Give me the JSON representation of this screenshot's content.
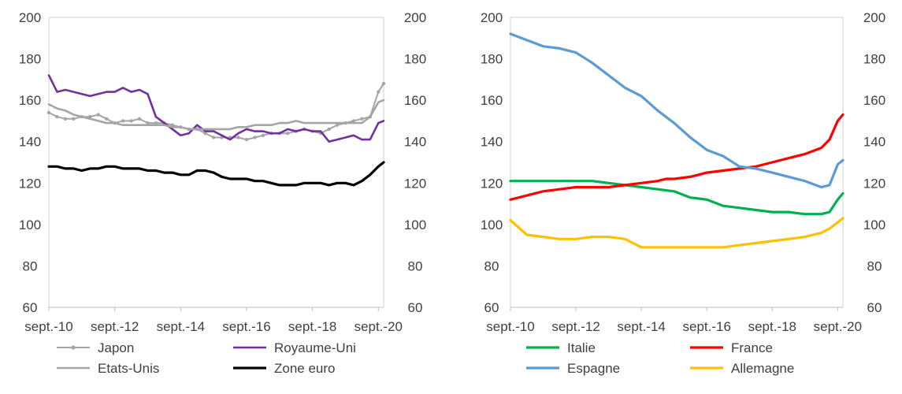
{
  "chart_data": [
    {
      "type": "line",
      "title": "",
      "xlabel": "",
      "ylabel": "",
      "ylim": [
        60,
        200
      ],
      "yticks": [
        60,
        80,
        100,
        120,
        140,
        160,
        180,
        200
      ],
      "y2ticks": [
        60,
        80,
        100,
        120,
        140,
        160,
        180,
        200
      ],
      "xlim": [
        2010.67,
        2020.83
      ],
      "xticks": [
        {
          "label": "sept.-10",
          "x": 2010.67
        },
        {
          "label": "sept.-12",
          "x": 2012.67
        },
        {
          "label": "sept.-14",
          "x": 2014.67
        },
        {
          "label": "sept.-16",
          "x": 2016.67
        },
        {
          "label": "sept.-18",
          "x": 2018.67
        },
        {
          "label": "sept.-20",
          "x": 2020.67
        }
      ],
      "legend": "bottom",
      "series": [
        {
          "name": "Japon",
          "color": "#a5a5a5",
          "markers": true,
          "width": 2,
          "x": [
            2010.67,
            2010.92,
            2011.17,
            2011.42,
            2011.67,
            2011.92,
            2012.17,
            2012.42,
            2012.67,
            2012.92,
            2013.17,
            2013.42,
            2013.67,
            2013.92,
            2014.17,
            2014.42,
            2014.67,
            2014.92,
            2015.17,
            2015.42,
            2015.67,
            2015.92,
            2016.17,
            2016.42,
            2016.67,
            2016.92,
            2017.17,
            2017.42,
            2017.67,
            2017.92,
            2018.17,
            2018.42,
            2018.67,
            2018.92,
            2019.17,
            2019.42,
            2019.67,
            2019.92,
            2020.17,
            2020.42,
            2020.67,
            2020.83
          ],
          "y": [
            154,
            152,
            151,
            151,
            152,
            152,
            153,
            151,
            149,
            150,
            150,
            151,
            149,
            149,
            149,
            148,
            147,
            146,
            146,
            144,
            142,
            142,
            142,
            142,
            141,
            142,
            143,
            144,
            144,
            144,
            145,
            146,
            145,
            144,
            146,
            148,
            149,
            150,
            151,
            152,
            164,
            168
          ]
        },
        {
          "name": "Royaume-Uni",
          "color": "#7030a0",
          "markers": false,
          "width": 2.6,
          "x": [
            2010.67,
            2010.92,
            2011.17,
            2011.42,
            2011.67,
            2011.92,
            2012.17,
            2012.42,
            2012.67,
            2012.92,
            2013.17,
            2013.42,
            2013.67,
            2013.92,
            2014.17,
            2014.42,
            2014.67,
            2014.92,
            2015.17,
            2015.42,
            2015.67,
            2015.92,
            2016.17,
            2016.42,
            2016.67,
            2016.92,
            2017.17,
            2017.42,
            2017.67,
            2017.92,
            2018.17,
            2018.42,
            2018.67,
            2018.92,
            2019.17,
            2019.42,
            2019.67,
            2019.92,
            2020.17,
            2020.42,
            2020.67,
            2020.83
          ],
          "y": [
            172,
            164,
            165,
            164,
            163,
            162,
            163,
            164,
            164,
            166,
            164,
            165,
            163,
            152,
            149,
            146,
            143,
            144,
            148,
            145,
            145,
            143,
            141,
            144,
            146,
            145,
            145,
            144,
            144,
            146,
            145,
            146,
            145,
            145,
            140,
            141,
            142,
            143,
            141,
            141,
            149,
            150
          ]
        },
        {
          "name": "Etats-Unis",
          "color": "#a5a5a5",
          "markers": false,
          "width": 2.6,
          "x": [
            2010.67,
            2010.92,
            2011.17,
            2011.42,
            2011.67,
            2011.92,
            2012.17,
            2012.42,
            2012.67,
            2012.92,
            2013.17,
            2013.42,
            2013.67,
            2013.92,
            2014.17,
            2014.42,
            2014.67,
            2014.92,
            2015.17,
            2015.42,
            2015.67,
            2015.92,
            2016.17,
            2016.42,
            2016.67,
            2016.92,
            2017.17,
            2017.42,
            2017.67,
            2017.92,
            2018.17,
            2018.42,
            2018.67,
            2018.92,
            2019.17,
            2019.42,
            2019.67,
            2019.92,
            2020.17,
            2020.42,
            2020.67,
            2020.83
          ],
          "y": [
            158,
            156,
            155,
            153,
            152,
            151,
            150,
            149,
            149,
            148,
            148,
            148,
            148,
            148,
            148,
            147,
            147,
            146,
            146,
            146,
            146,
            146,
            146,
            147,
            147,
            148,
            148,
            148,
            149,
            149,
            150,
            149,
            149,
            149,
            149,
            149,
            149,
            149,
            149,
            152,
            159,
            160
          ]
        },
        {
          "name": "Zone euro",
          "color": "#000000",
          "markers": false,
          "width": 3.2,
          "x": [
            2010.67,
            2010.92,
            2011.17,
            2011.42,
            2011.67,
            2011.92,
            2012.17,
            2012.42,
            2012.67,
            2012.92,
            2013.17,
            2013.42,
            2013.67,
            2013.92,
            2014.17,
            2014.42,
            2014.67,
            2014.92,
            2015.17,
            2015.42,
            2015.67,
            2015.92,
            2016.17,
            2016.42,
            2016.67,
            2016.92,
            2017.17,
            2017.42,
            2017.67,
            2017.92,
            2018.17,
            2018.42,
            2018.67,
            2018.92,
            2019.17,
            2019.42,
            2019.67,
            2019.92,
            2020.17,
            2020.42,
            2020.67,
            2020.83
          ],
          "y": [
            128,
            128,
            127,
            127,
            126,
            127,
            127,
            128,
            128,
            127,
            127,
            127,
            126,
            126,
            125,
            125,
            124,
            124,
            126,
            126,
            125,
            123,
            122,
            122,
            122,
            121,
            121,
            120,
            119,
            119,
            119,
            120,
            120,
            120,
            119,
            120,
            120,
            119,
            121,
            124,
            128,
            130
          ]
        }
      ]
    },
    {
      "type": "line",
      "title": "",
      "xlabel": "",
      "ylabel": "",
      "ylim": [
        60,
        200
      ],
      "yticks": [
        60,
        80,
        100,
        120,
        140,
        160,
        180,
        200
      ],
      "y2ticks": [
        60,
        80,
        100,
        120,
        140,
        160,
        180,
        200
      ],
      "xlim": [
        2010.67,
        2020.83
      ],
      "xticks": [
        {
          "label": "sept.-10",
          "x": 2010.67
        },
        {
          "label": "sept.-12",
          "x": 2012.67
        },
        {
          "label": "sept.-14",
          "x": 2014.67
        },
        {
          "label": "sept.-16",
          "x": 2016.67
        },
        {
          "label": "sept.-18",
          "x": 2018.67
        },
        {
          "label": "sept.-20",
          "x": 2020.67
        }
      ],
      "legend": "bottom",
      "series": [
        {
          "name": "Italie",
          "color": "#00b050",
          "markers": false,
          "width": 3.2,
          "x": [
            2010.67,
            2011.17,
            2011.67,
            2012.17,
            2012.67,
            2013.17,
            2013.67,
            2014.17,
            2014.67,
            2015.17,
            2015.67,
            2016.17,
            2016.67,
            2017.17,
            2017.67,
            2018.17,
            2018.67,
            2019.17,
            2019.67,
            2020.17,
            2020.42,
            2020.67,
            2020.83
          ],
          "y": [
            121,
            121,
            121,
            121,
            121,
            121,
            120,
            119,
            118,
            117,
            116,
            113,
            112,
            109,
            108,
            107,
            106,
            106,
            105,
            105,
            106,
            112,
            115
          ]
        },
        {
          "name": "France",
          "color": "#ff0000",
          "markers": false,
          "width": 3.2,
          "x": [
            2010.67,
            2011.17,
            2011.67,
            2012.17,
            2012.67,
            2013.17,
            2013.67,
            2014.17,
            2014.67,
            2015.17,
            2015.42,
            2015.67,
            2016.17,
            2016.67,
            2017.17,
            2017.67,
            2018.17,
            2018.67,
            2019.17,
            2019.67,
            2020.17,
            2020.42,
            2020.67,
            2020.83
          ],
          "y": [
            112,
            114,
            116,
            117,
            118,
            118,
            118,
            119,
            120,
            121,
            122,
            122,
            123,
            125,
            126,
            127,
            128,
            130,
            132,
            134,
            137,
            141,
            150,
            153
          ]
        },
        {
          "name": "Espagne",
          "color": "#5b9bd5",
          "markers": false,
          "width": 3.2,
          "x": [
            2010.67,
            2011.17,
            2011.67,
            2012.17,
            2012.67,
            2013.17,
            2013.67,
            2014.17,
            2014.67,
            2015.17,
            2015.67,
            2016.17,
            2016.67,
            2017.17,
            2017.67,
            2018.17,
            2018.67,
            2019.17,
            2019.67,
            2020.17,
            2020.42,
            2020.67,
            2020.83
          ],
          "y": [
            192,
            189,
            186,
            185,
            183,
            178,
            172,
            166,
            162,
            155,
            149,
            142,
            136,
            133,
            128,
            127,
            125,
            123,
            121,
            118,
            119,
            129,
            131
          ]
        },
        {
          "name": "Allemagne",
          "color": "#ffc000",
          "markers": false,
          "width": 3.2,
          "x": [
            2010.67,
            2011.17,
            2011.67,
            2012.17,
            2012.67,
            2013.17,
            2013.67,
            2014.17,
            2014.67,
            2015.17,
            2015.67,
            2016.17,
            2016.67,
            2017.17,
            2017.67,
            2018.17,
            2018.67,
            2019.17,
            2019.67,
            2020.17,
            2020.42,
            2020.67,
            2020.83
          ],
          "y": [
            102,
            95,
            94,
            93,
            93,
            94,
            94,
            93,
            89,
            89,
            89,
            89,
            89,
            89,
            90,
            91,
            92,
            93,
            94,
            96,
            98,
            101,
            103
          ]
        }
      ]
    }
  ]
}
